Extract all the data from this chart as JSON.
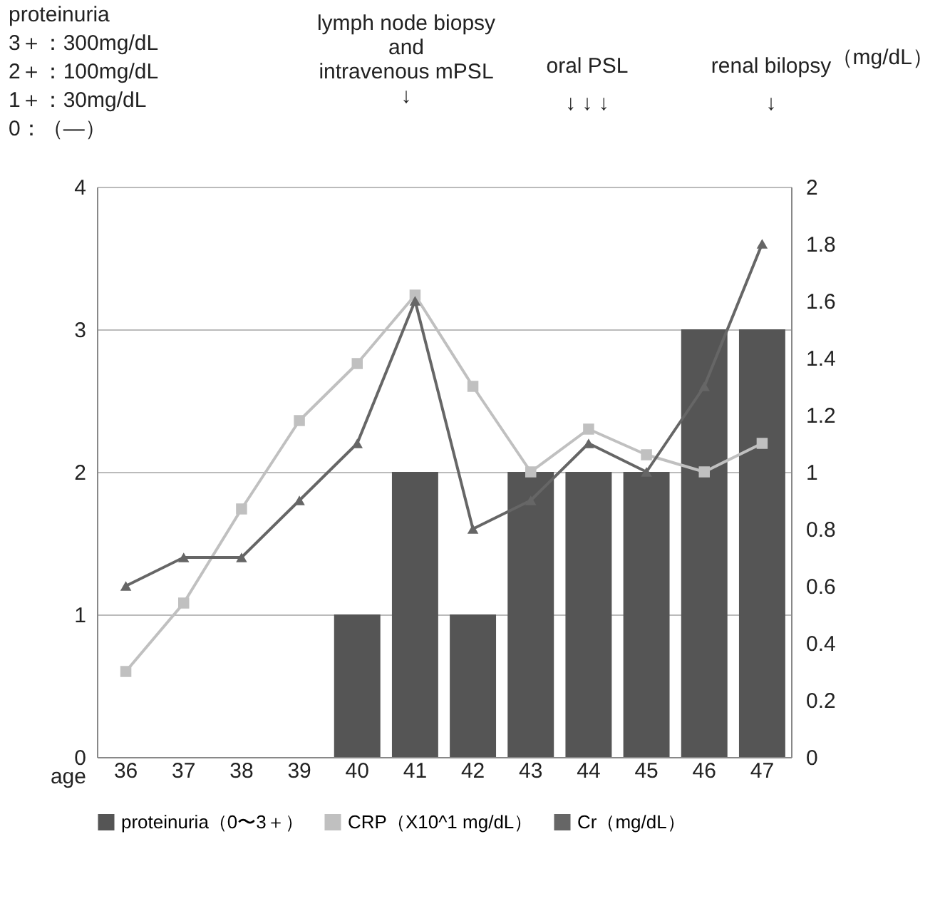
{
  "chart_data": {
    "type": "bar",
    "xlabel": "age",
    "categories": [
      "36",
      "37",
      "38",
      "39",
      "40",
      "41",
      "42",
      "43",
      "44",
      "45",
      "46",
      "47"
    ],
    "series": [
      {
        "name": "proteinuria（0〜3＋）",
        "color": "#555555",
        "values": [
          null,
          null,
          null,
          null,
          1,
          2,
          1,
          2,
          2,
          2,
          3,
          3
        ]
      },
      {
        "name": "CRP（X10^1 mg/dL）",
        "type": "line",
        "axis": "y2",
        "marker": "square",
        "color": "#c0c0c0",
        "values": [
          0.3,
          0.54,
          0.87,
          1.18,
          1.38,
          1.62,
          1.3,
          1.0,
          1.15,
          1.06,
          1.0,
          1.1
        ]
      },
      {
        "name": "Cr（mg/dL）",
        "type": "line",
        "axis": "y2",
        "marker": "triangle",
        "color": "#666666",
        "values": [
          0.6,
          0.7,
          0.7,
          0.9,
          1.1,
          1.6,
          0.8,
          0.9,
          1.1,
          1.0,
          1.3,
          1.8
        ]
      }
    ],
    "ylim": [
      0,
      4
    ],
    "yticks": [
      0,
      1,
      2,
      3,
      4
    ],
    "y2lim": [
      0,
      2
    ],
    "y2ticks": [
      0,
      0.2,
      0.4,
      0.6,
      0.8,
      1,
      1.2,
      1.4,
      1.6,
      1.8,
      2
    ],
    "grid": "y",
    "legend": "bottom",
    "annotations": [
      "proteinuria\n 3＋：300mg/dL\n 2＋：100mg/dL\n 1＋：30mg/dL\n 0：（—）",
      "lymph node biopsy\nand\nintravenous mPSL\n↓",
      "oral PSL\n↓  ↓  ↓",
      "renal bilopsy\n↓",
      "（mg/dL）"
    ]
  }
}
